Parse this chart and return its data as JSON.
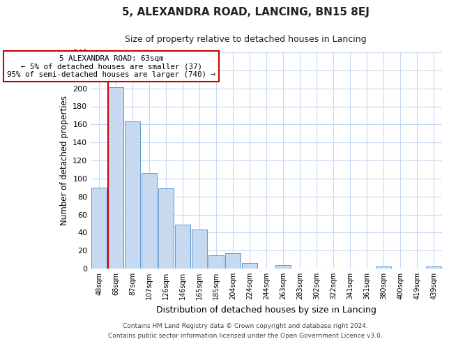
{
  "title": "5, ALEXANDRA ROAD, LANCING, BN15 8EJ",
  "subtitle": "Size of property relative to detached houses in Lancing",
  "xlabel": "Distribution of detached houses by size in Lancing",
  "ylabel": "Number of detached properties",
  "bar_labels": [
    "48sqm",
    "68sqm",
    "87sqm",
    "107sqm",
    "126sqm",
    "146sqm",
    "165sqm",
    "185sqm",
    "204sqm",
    "224sqm",
    "244sqm",
    "263sqm",
    "283sqm",
    "302sqm",
    "322sqm",
    "341sqm",
    "361sqm",
    "380sqm",
    "400sqm",
    "419sqm",
    "439sqm"
  ],
  "bar_values": [
    90,
    201,
    163,
    106,
    89,
    49,
    43,
    15,
    17,
    6,
    0,
    4,
    0,
    0,
    0,
    0,
    0,
    2,
    0,
    0,
    2
  ],
  "bar_color": "#c6d9f0",
  "bar_edge_color": "#5b9bd5",
  "highlight_line_color": "#cc0000",
  "annotation_line1": "5 ALEXANDRA ROAD: 63sqm",
  "annotation_line2": "← 5% of detached houses are smaller (37)",
  "annotation_line3": "95% of semi-detached houses are larger (740) →",
  "annotation_box_edge_color": "#cc0000",
  "ylim": [
    0,
    240
  ],
  "yticks": [
    0,
    20,
    40,
    60,
    80,
    100,
    120,
    140,
    160,
    180,
    200,
    220,
    240
  ],
  "footer_line1": "Contains HM Land Registry data © Crown copyright and database right 2024.",
  "footer_line2": "Contains public sector information licensed under the Open Government Licence v3.0.",
  "background_color": "#ffffff",
  "grid_color": "#c6d9f0"
}
